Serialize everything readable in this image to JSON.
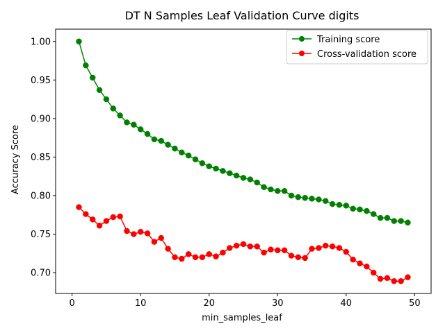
{
  "chart_data": {
    "type": "line",
    "title": "DT N Samples Leaf Validation Curve digits",
    "xlabel": "min_samples_leaf",
    "ylabel": "Accuracy Score",
    "xlim": [
      -2.4,
      52.4
    ],
    "ylim": [
      0.673,
      1.016
    ],
    "xticks": [
      "0",
      "10",
      "20",
      "30",
      "40",
      "50"
    ],
    "yticks": [
      "0.70",
      "0.75",
      "0.80",
      "0.85",
      "0.90",
      "0.95",
      "1.00"
    ],
    "legend_position": "top-right",
    "grid": false,
    "x": [
      1,
      2,
      3,
      4,
      5,
      6,
      7,
      8,
      9,
      10,
      11,
      12,
      13,
      14,
      15,
      16,
      17,
      18,
      19,
      20,
      21,
      22,
      23,
      24,
      25,
      26,
      27,
      28,
      29,
      30,
      31,
      32,
      33,
      34,
      35,
      36,
      37,
      38,
      39,
      40,
      41,
      42,
      43,
      44,
      45,
      46,
      47,
      48,
      49
    ],
    "series": [
      {
        "name": "Training score",
        "color": "#008000",
        "values": [
          1.0,
          0.969,
          0.953,
          0.937,
          0.925,
          0.913,
          0.904,
          0.895,
          0.892,
          0.886,
          0.88,
          0.873,
          0.871,
          0.866,
          0.861,
          0.856,
          0.852,
          0.847,
          0.842,
          0.838,
          0.835,
          0.832,
          0.829,
          0.826,
          0.823,
          0.821,
          0.817,
          0.811,
          0.808,
          0.806,
          0.806,
          0.8,
          0.798,
          0.797,
          0.796,
          0.795,
          0.793,
          0.789,
          0.788,
          0.787,
          0.783,
          0.782,
          0.78,
          0.776,
          0.771,
          0.771,
          0.767,
          0.767,
          0.765
        ]
      },
      {
        "name": "Cross-validation score",
        "color": "#ff0000",
        "values": [
          0.785,
          0.776,
          0.769,
          0.761,
          0.767,
          0.772,
          0.773,
          0.754,
          0.75,
          0.753,
          0.751,
          0.74,
          0.745,
          0.731,
          0.72,
          0.718,
          0.724,
          0.72,
          0.72,
          0.724,
          0.721,
          0.726,
          0.732,
          0.735,
          0.737,
          0.734,
          0.734,
          0.726,
          0.73,
          0.729,
          0.729,
          0.722,
          0.72,
          0.719,
          0.731,
          0.732,
          0.735,
          0.734,
          0.732,
          0.727,
          0.717,
          0.712,
          0.708,
          0.7,
          0.692,
          0.693,
          0.689,
          0.689,
          0.694
        ]
      }
    ]
  }
}
